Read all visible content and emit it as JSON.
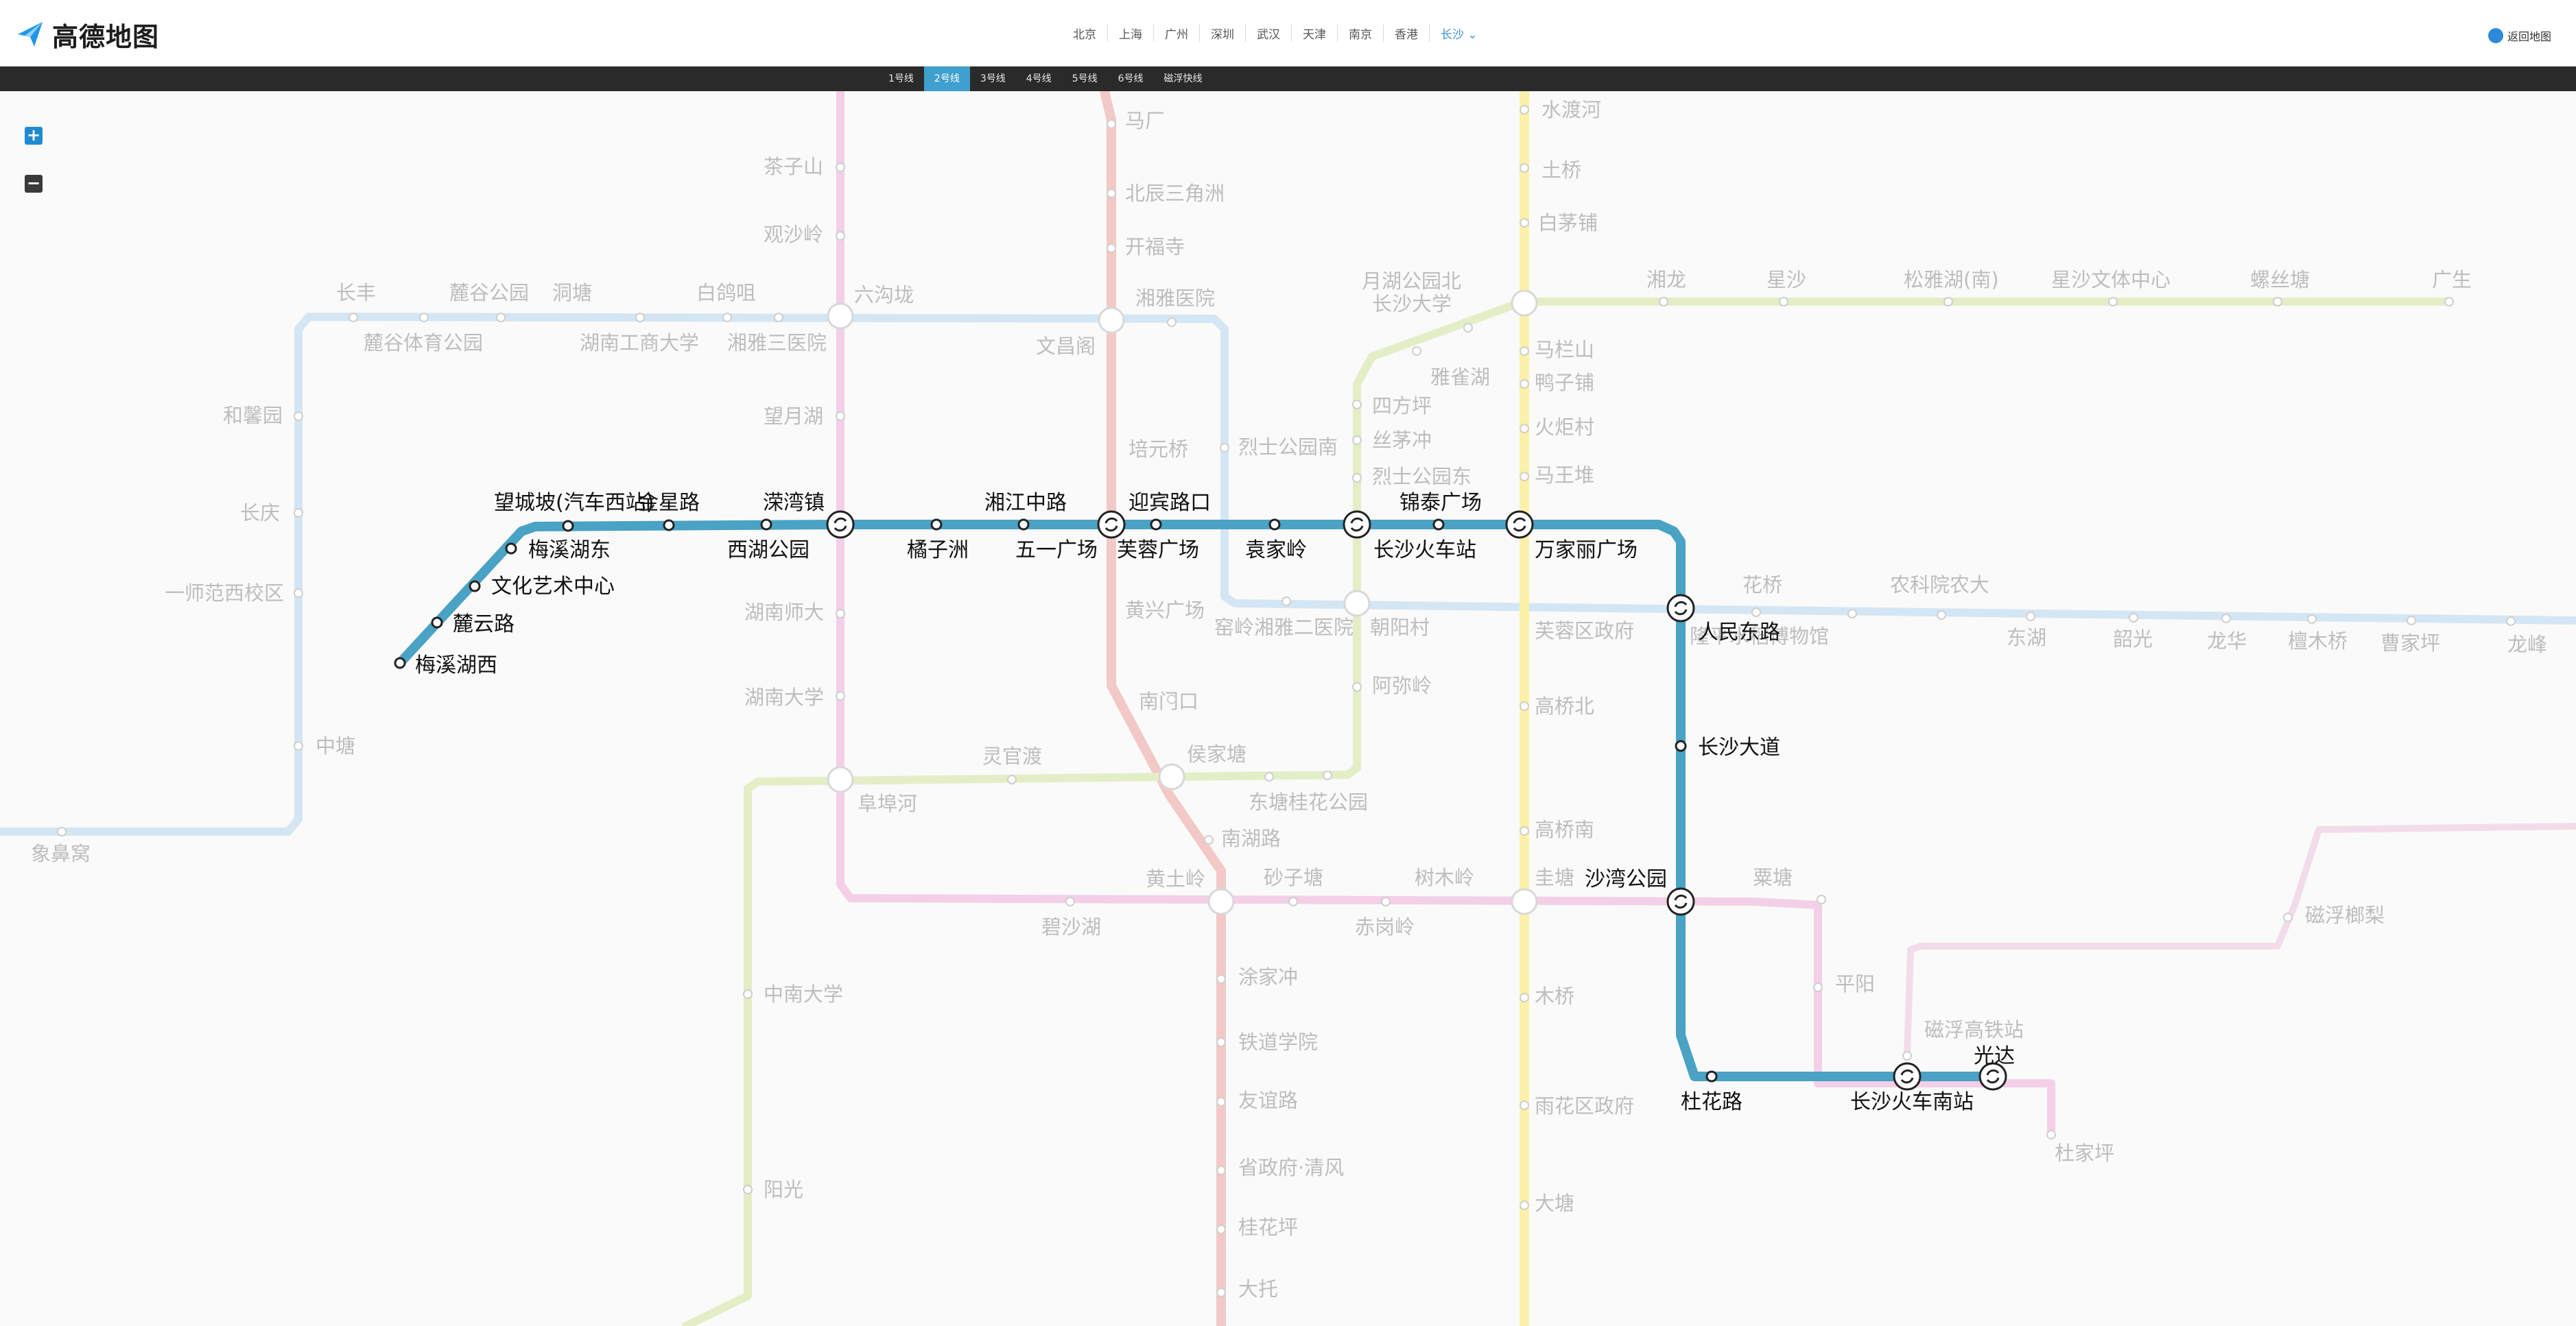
{
  "header": {
    "logo_text": "高德地图",
    "back_label": "返回地图",
    "cities": [
      "北京",
      "上海",
      "广州",
      "深圳",
      "武汉",
      "天津",
      "南京",
      "香港",
      "长沙"
    ],
    "active_city": "长沙",
    "line_tabs": [
      "1号线",
      "2号线",
      "3号线",
      "4号线",
      "5号线",
      "6号线",
      "磁浮快线"
    ],
    "active_line": "2号线"
  },
  "zoom": {
    "in_label": "+",
    "out_label": "−"
  },
  "colors": {
    "line1": "#f2c9c6",
    "line2": "#4aa2c4",
    "line3": "#d4e6f4",
    "line4": "#f3cfe8",
    "line5": "#fbf1a8",
    "line6": "#e3eec7",
    "maglev": "#f3dcea",
    "active": "#4aa2c4",
    "brand": "#1f8ad0"
  },
  "map": {
    "active_line_name": "2号线",
    "active_stations": [
      "梅溪湖西",
      "麓云路",
      "文化艺术中心",
      "梅溪湖东",
      "望城坡(汽车西站)",
      "金星路",
      "西湖公园",
      "溁湾镇",
      "橘子洲",
      "湘江中路",
      "五一广场",
      "芙蓉广场",
      "迎宾路口",
      "袁家岭",
      "长沙火车站",
      "锦泰广场",
      "万家丽广场",
      "人民东路",
      "长沙大道",
      "沙湾公园",
      "杜花路",
      "长沙火车南站",
      "光达"
    ],
    "faded_labels": [
      "马厂",
      "北辰三角洲",
      "开福寺",
      "湘雅医院",
      "文昌阁",
      "培元桥",
      "黄兴广场",
      "南门口",
      "侯家塘",
      "南湖路",
      "黄土岭",
      "涂家冲",
      "铁道学院",
      "友谊路",
      "省政府·清风",
      "桂花坪",
      "大托",
      "茶子山",
      "观沙岭",
      "六沟垅",
      "望月湖",
      "湖南师大",
      "湖南大学",
      "阜埠河",
      "碧沙湖",
      "砂子塘",
      "树木岭",
      "赤岗岭",
      "圭塘",
      "粟塘",
      "平阳",
      "杜家坪",
      "长丰",
      "麓谷公园",
      "洞塘",
      "白鸽咀",
      "麓谷体育公园",
      "湖南工商大学",
      "湘雅三医院",
      "和馨园",
      "长庆",
      "一师范西校区",
      "中塘",
      "象鼻窝",
      "烈士公园南",
      "窑岭湘雅二医院",
      "朝阳村",
      "芙蓉区政府",
      "花桥",
      "隆平水稻博物馆",
      "农科院农大",
      "东湖",
      "韶光",
      "龙华",
      "檀木桥",
      "曹家坪",
      "龙峰",
      "水渡河",
      "土桥",
      "白茅铺",
      "马栏山",
      "鸭子铺",
      "火炬村",
      "马王堆",
      "高桥北",
      "高桥南",
      "木桥",
      "雨花区政府",
      "大塘",
      "月湖公园北",
      "长沙大学",
      "湘龙",
      "星沙",
      "松雅湖(南)",
      "星沙文体中心",
      "螺丝塘",
      "广生",
      "雅雀湖",
      "四方坪",
      "丝茅冲",
      "烈士公园东",
      "阿弥岭",
      "东塘桂花公园",
      "灵官渡",
      "中南大学",
      "阳光",
      "磁浮榔梨",
      "磁浮高铁站"
    ]
  }
}
